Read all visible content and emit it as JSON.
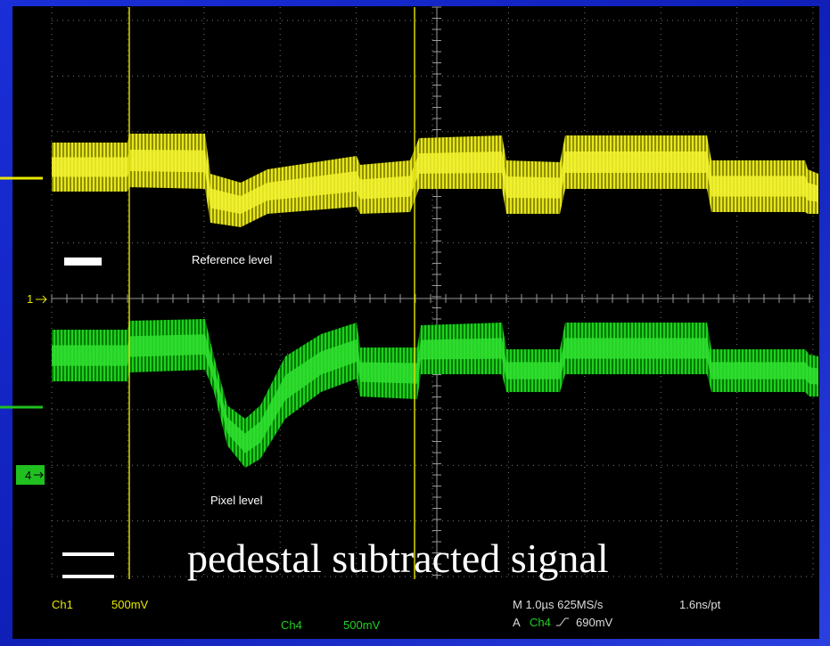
{
  "screen": {
    "labels": {
      "reference": "Reference level",
      "pixel": "Pixel level"
    },
    "markers": {
      "ch1": "1",
      "ch4": "4"
    },
    "legend": "pedestal subtracted signal",
    "status": {
      "ch1": "Ch1",
      "ch1_scale": "500mV",
      "ch4": "Ch4",
      "ch4_scale": "500mV",
      "timebase": "M 1.0µs 625MS/s",
      "resolution": "1.6ns/pt",
      "trigger_prefix": "A",
      "trigger_source": "Ch4",
      "trigger_level": "690mV"
    }
  }
}
